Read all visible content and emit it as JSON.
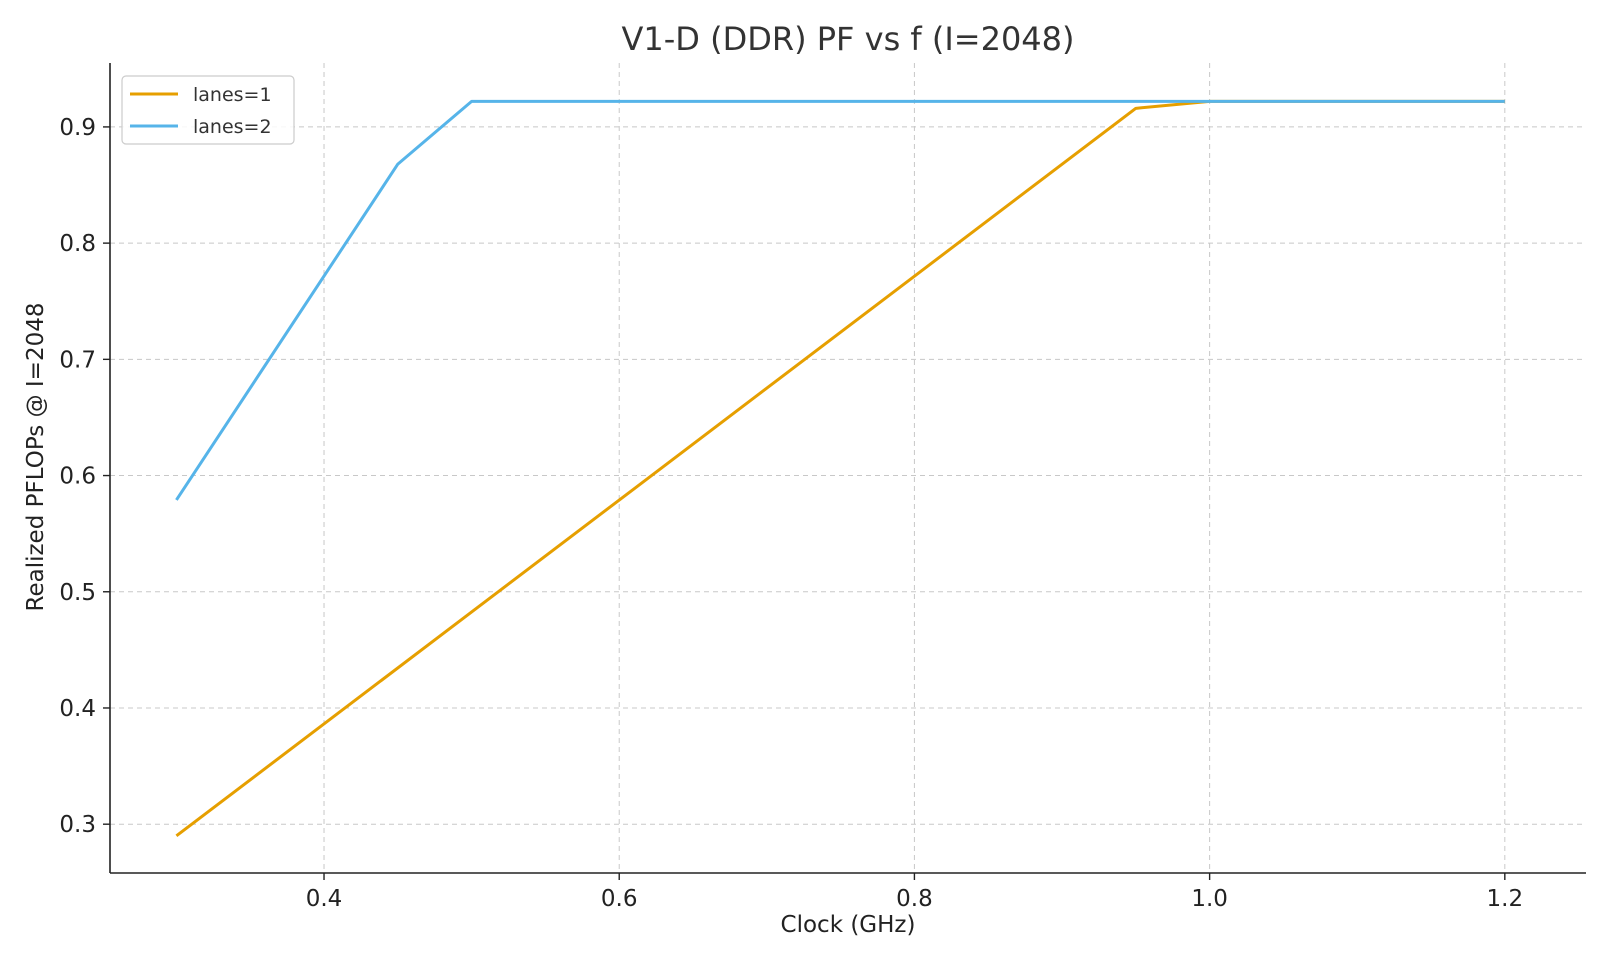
{
  "chart_data": {
    "type": "line",
    "title": "V1-D (DDR) PF vs f (I=2048)",
    "xlabel": "Clock (GHz)",
    "ylabel": "Realized PFLOPs @ I=2048",
    "xlim": [
      0.255,
      1.255
    ],
    "ylim": [
      0.258,
      0.955
    ],
    "xticks": [
      0.4,
      0.6,
      0.8,
      1.0,
      1.2
    ],
    "xtick_labels": [
      "0.4",
      "0.6",
      "0.8",
      "1.0",
      "1.2"
    ],
    "yticks": [
      0.3,
      0.4,
      0.5,
      0.6,
      0.7,
      0.8,
      0.9
    ],
    "ytick_labels": [
      "0.3",
      "0.4",
      "0.5",
      "0.6",
      "0.7",
      "0.8",
      "0.9"
    ],
    "grid": true,
    "legend_position": "top-left",
    "series": [
      {
        "name": "lanes=1",
        "color": "#E69F00",
        "x": [
          0.3,
          0.95,
          1.0,
          1.2
        ],
        "y": [
          0.29,
          0.916,
          0.922,
          0.922
        ]
      },
      {
        "name": "lanes=2",
        "color": "#56B4E9",
        "x": [
          0.3,
          0.45,
          0.5,
          1.2
        ],
        "y": [
          0.579,
          0.868,
          0.922,
          0.922
        ]
      }
    ]
  }
}
